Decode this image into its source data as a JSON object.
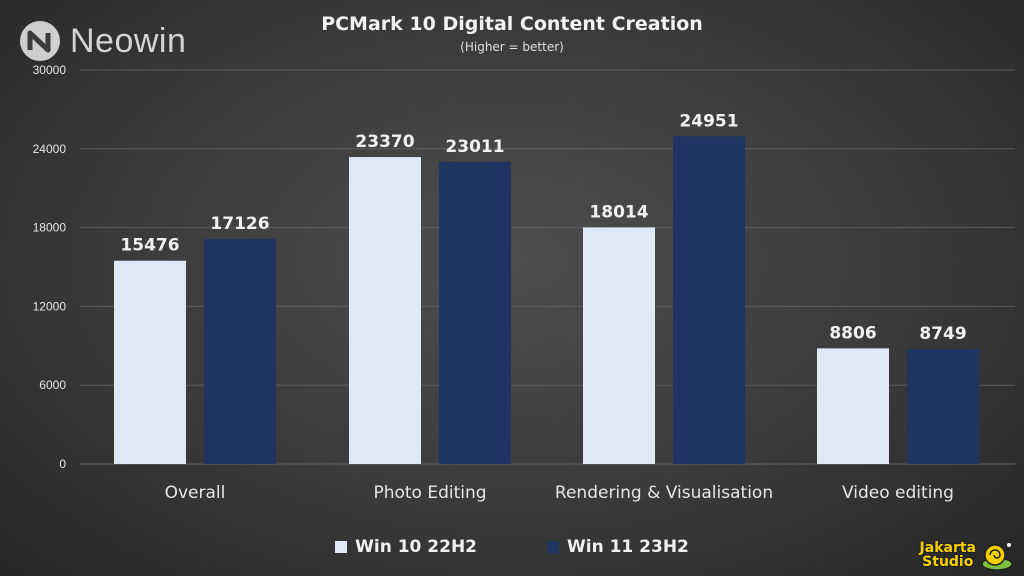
{
  "brand": {
    "name": "Neowin"
  },
  "watermark": {
    "line1": "Jakarta",
    "line2": "Studio"
  },
  "chart_data": {
    "type": "bar",
    "title": "PCMark  10 Digital  Content  Creation",
    "subtitle": "(Higher = better)",
    "categories": [
      "Overall",
      "Photo Editing",
      "Rendering & Visualisation",
      "Video editing"
    ],
    "series": [
      {
        "name": "Win 10 22H2",
        "values": [
          15476,
          23370,
          18014,
          8806
        ],
        "color": "#dfe8f5"
      },
      {
        "name": "Win 11 23H2",
        "values": [
          17126,
          23011,
          24951,
          8749
        ],
        "color": "#1f3461"
      }
    ],
    "ylim": [
      0,
      30000
    ],
    "yticks": [
      "0",
      "6000",
      "12000",
      "18000",
      "24000",
      "30000"
    ],
    "xlabel": "",
    "ylabel": "",
    "grid": true,
    "legend": "bottom-center",
    "colors": {
      "grid": "#5e5e5e",
      "text": "#f0f0f0",
      "axis_text": "#e6e6e6"
    }
  }
}
